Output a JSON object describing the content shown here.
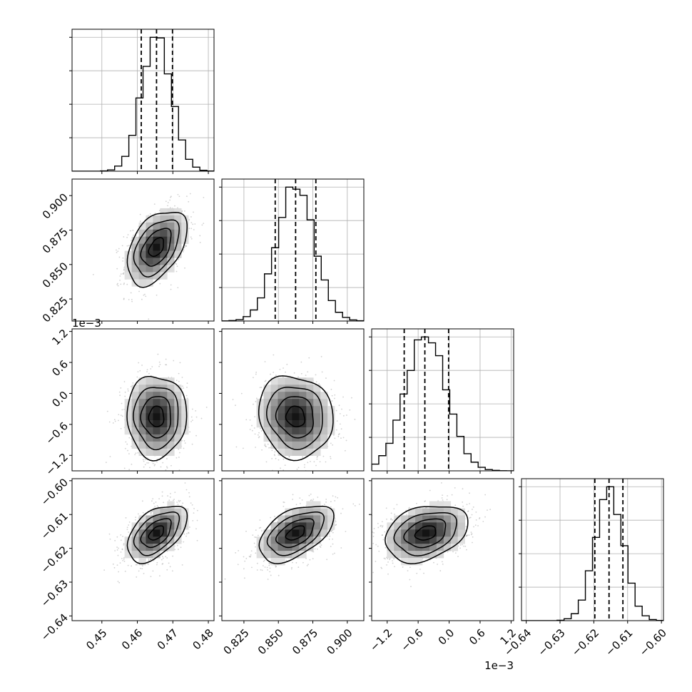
{
  "chart_data": {
    "type": "corner",
    "parameters": [
      {
        "ticks": [
          0.45,
          0.46,
          0.47,
          0.48
        ],
        "tick_labels": [
          "0.45",
          "0.46",
          "0.47",
          "0.48"
        ],
        "range": [
          0.4416,
          0.4816
        ],
        "mean": 0.4654,
        "sigma": 0.0042,
        "quantiles": [
          0.4611,
          0.4654,
          0.4699
        ],
        "offset_label": ""
      },
      {
        "ticks": [
          0.825,
          0.85,
          0.875,
          0.9
        ],
        "tick_labels": [
          "0.825",
          "0.850",
          "0.875",
          "0.900"
        ],
        "range": [
          0.809,
          0.912
        ],
        "mean": 0.8625,
        "sigma": 0.0135,
        "quantiles": [
          0.8477,
          0.8625,
          0.8772
        ],
        "offset_label": ""
      },
      {
        "ticks": [
          -1.2,
          -0.6,
          0.0,
          0.6,
          1.2
        ],
        "tick_labels": [
          "−1.2",
          "−0.6",
          "0.0",
          "0.6",
          "1.2"
        ],
        "range": [
          -1.5,
          1.25
        ],
        "mean": -0.45,
        "sigma": 0.4,
        "quantiles": [
          -0.87,
          -0.47,
          -0.01
        ],
        "offset_label": "1e−3"
      },
      {
        "ticks": [
          -0.64,
          -0.63,
          -0.62,
          -0.61,
          -0.6
        ],
        "tick_labels": [
          "−0.64",
          "−0.63",
          "−0.62",
          "−0.61",
          "−0.60"
        ],
        "range": [
          -0.6414,
          -0.5994
        ],
        "mean": -0.6155,
        "sigma": 0.0042,
        "quantiles": [
          -0.6197,
          -0.6155,
          -0.6114
        ],
        "offset_label": ""
      }
    ],
    "correlations": [
      [
        1,
        0.45,
        0.0,
        0.5
      ],
      [
        0.45,
        1,
        -0.1,
        0.5
      ],
      [
        0.0,
        -0.1,
        1,
        0.3
      ],
      [
        0.5,
        0.5,
        0.3,
        1
      ]
    ],
    "histogram_bins": 20,
    "grid": true
  }
}
